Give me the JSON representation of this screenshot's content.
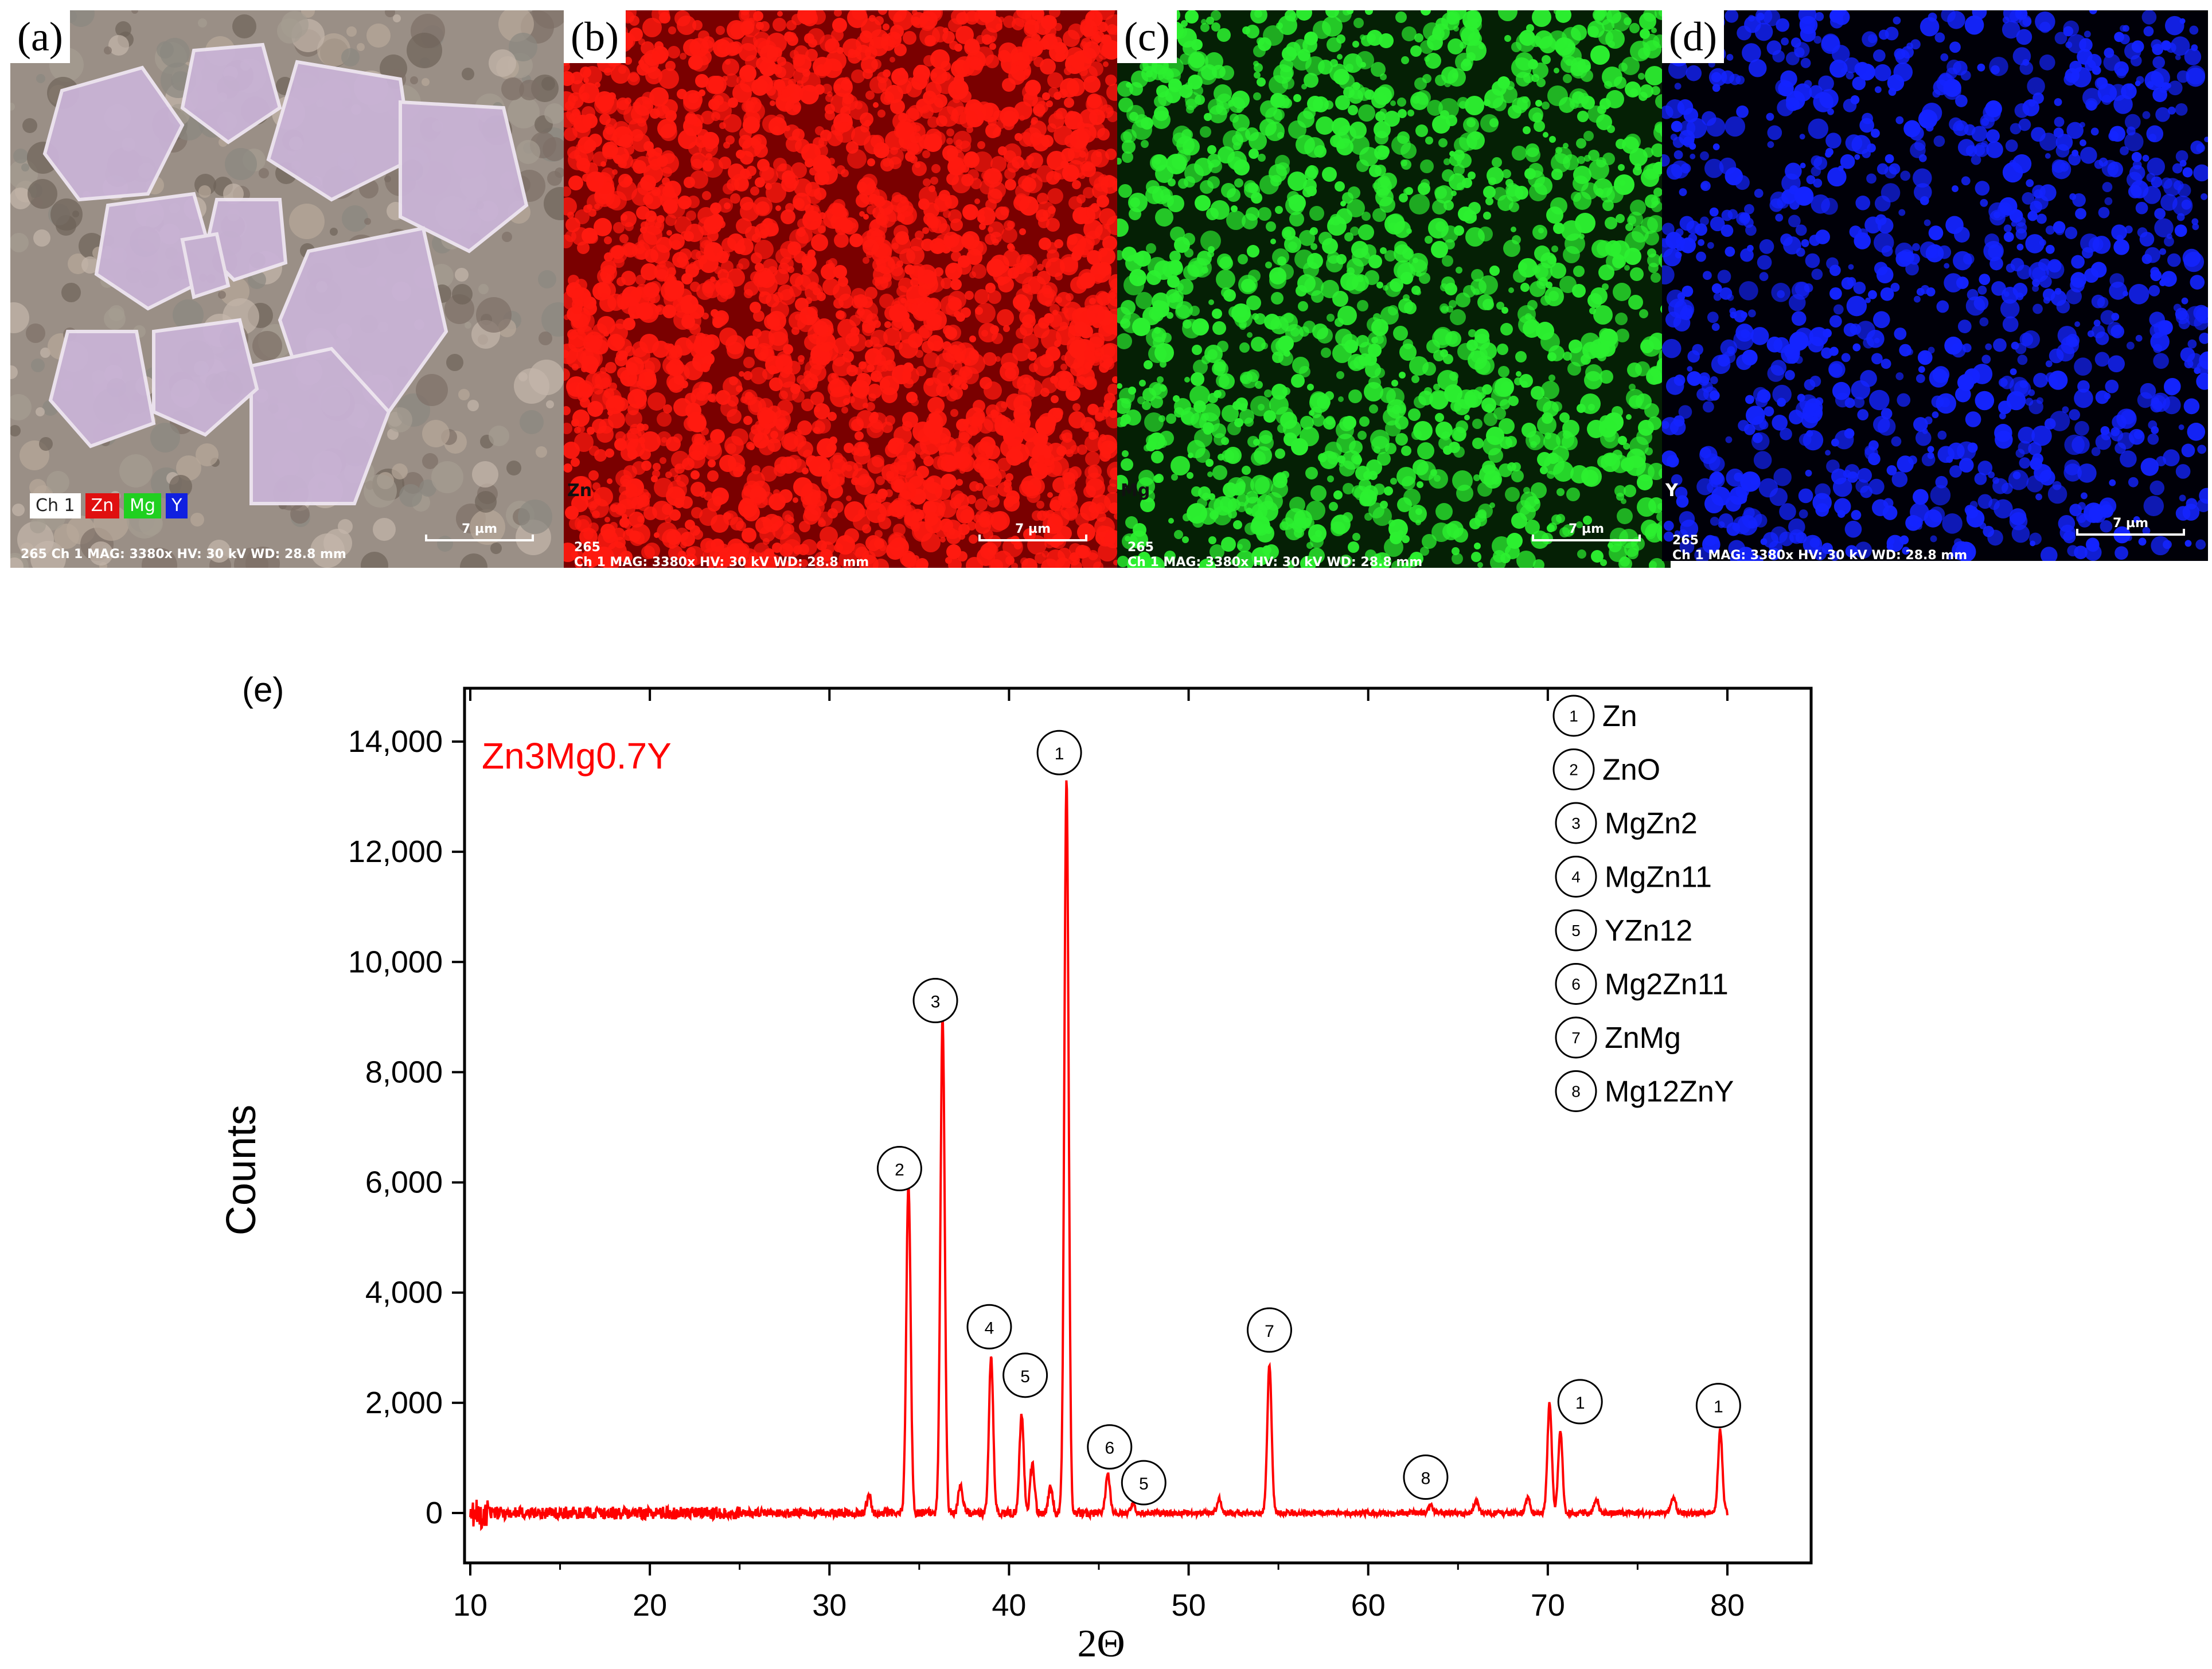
{
  "panels": [
    {
      "tag": "(a)",
      "kind": "sem",
      "chips": [
        {
          "label": "Ch 1",
          "bg": "#ffffff",
          "fg": "#222222"
        },
        {
          "label": "Zn",
          "bg": "#e01010",
          "fg": "#ffffff"
        },
        {
          "label": "Mg",
          "bg": "#20d020",
          "fg": "#ffffff"
        },
        {
          "label": "Y",
          "bg": "#1020e0",
          "fg": "#ffffff"
        }
      ],
      "footer": "265 Ch 1   MAG: 3380x   HV: 30 kV   WD: 28.8 mm",
      "scale": "7 µm"
    },
    {
      "tag": "(b)",
      "kind": "map",
      "element": "Zn",
      "color": "#ff1a10",
      "bg": "#7a0000",
      "footer_id": "265",
      "footer": "Ch 1   MAG: 3380x   HV: 30 kV   WD: 28.8 mm",
      "scale": "7 µm"
    },
    {
      "tag": "(c)",
      "kind": "map",
      "element": "Mg",
      "color": "#2cf030",
      "bg": "#052005",
      "footer_id": "265",
      "footer": "Ch 1   MAG: 3380x   HV: 30 kV   WD: 28.8 mm",
      "scale": "7 µm"
    },
    {
      "tag": "(d)",
      "kind": "map",
      "element": "Y",
      "color": "#1424ff",
      "bg": "#000008",
      "footer_id": "265",
      "footer": "Ch 1   MAG: 3380x   HV: 30 kV   WD: 28.8 mm",
      "scale": "7 µm"
    }
  ],
  "panel_e_label": "(e)",
  "chart_data": {
    "type": "line",
    "title": "",
    "sample_label": "Zn3Mg0.7Y",
    "xlabel": "2Θ",
    "ylabel": "Counts",
    "xlim": [
      10,
      80
    ],
    "ylim": [
      -800,
      14800
    ],
    "x_ticks": [
      10,
      20,
      30,
      40,
      50,
      60,
      70,
      80
    ],
    "y_ticks": [
      0,
      2000,
      4000,
      6000,
      8000,
      10000,
      12000,
      14000
    ],
    "y_tick_labels": [
      "0",
      "2,000",
      "4,000",
      "6,000",
      "8,000",
      "10,000",
      "12,000",
      "14,000"
    ],
    "series": [
      {
        "color": "#ff0000",
        "peaks": [
          {
            "x": 32.2,
            "y": 320
          },
          {
            "x": 34.4,
            "y": 6000
          },
          {
            "x": 36.3,
            "y": 9000
          },
          {
            "x": 37.3,
            "y": 520
          },
          {
            "x": 39.0,
            "y": 2800
          },
          {
            "x": 40.7,
            "y": 1800
          },
          {
            "x": 41.3,
            "y": 900
          },
          {
            "x": 42.3,
            "y": 450
          },
          {
            "x": 43.2,
            "y": 13300
          },
          {
            "x": 45.5,
            "y": 700
          },
          {
            "x": 46.9,
            "y": 180
          },
          {
            "x": 51.7,
            "y": 250
          },
          {
            "x": 54.5,
            "y": 2700
          },
          {
            "x": 63.5,
            "y": 150
          },
          {
            "x": 66.0,
            "y": 220
          },
          {
            "x": 68.9,
            "y": 280
          },
          {
            "x": 70.1,
            "y": 2000
          },
          {
            "x": 70.7,
            "y": 1500
          },
          {
            "x": 72.7,
            "y": 250
          },
          {
            "x": 77.0,
            "y": 300
          },
          {
            "x": 79.6,
            "y": 1500
          }
        ]
      }
    ],
    "annotations": [
      {
        "label": "2",
        "x": 33.9,
        "y": 6250
      },
      {
        "label": "3",
        "x": 35.9,
        "y": 9300
      },
      {
        "label": "1",
        "x": 42.8,
        "y": 13800
      },
      {
        "label": "4",
        "x": 38.9,
        "y": 3380
      },
      {
        "label": "5",
        "x": 40.9,
        "y": 2500
      },
      {
        "label": "6",
        "x": 45.6,
        "y": 1200
      },
      {
        "label": "5",
        "x": 47.5,
        "y": 550
      },
      {
        "label": "7",
        "x": 54.5,
        "y": 3320
      },
      {
        "label": "8",
        "x": 63.2,
        "y": 650
      },
      {
        "label": "1",
        "x": 71.8,
        "y": 2020
      },
      {
        "label": "1",
        "x": 79.5,
        "y": 1950
      }
    ],
    "legend": {
      "placement": "top-right",
      "entries": [
        {
          "num": "1",
          "phase": "Zn"
        },
        {
          "num": "2",
          "phase": "ZnO"
        },
        {
          "num": "3",
          "phase": "MgZn2"
        },
        {
          "num": "4",
          "phase": "MgZn11"
        },
        {
          "num": "5",
          "phase": "YZn12"
        },
        {
          "num": "6",
          "phase": "Mg2Zn11"
        },
        {
          "num": "7",
          "phase": "ZnMg"
        },
        {
          "num": "8",
          "phase": "Mg12ZnY"
        }
      ]
    }
  }
}
